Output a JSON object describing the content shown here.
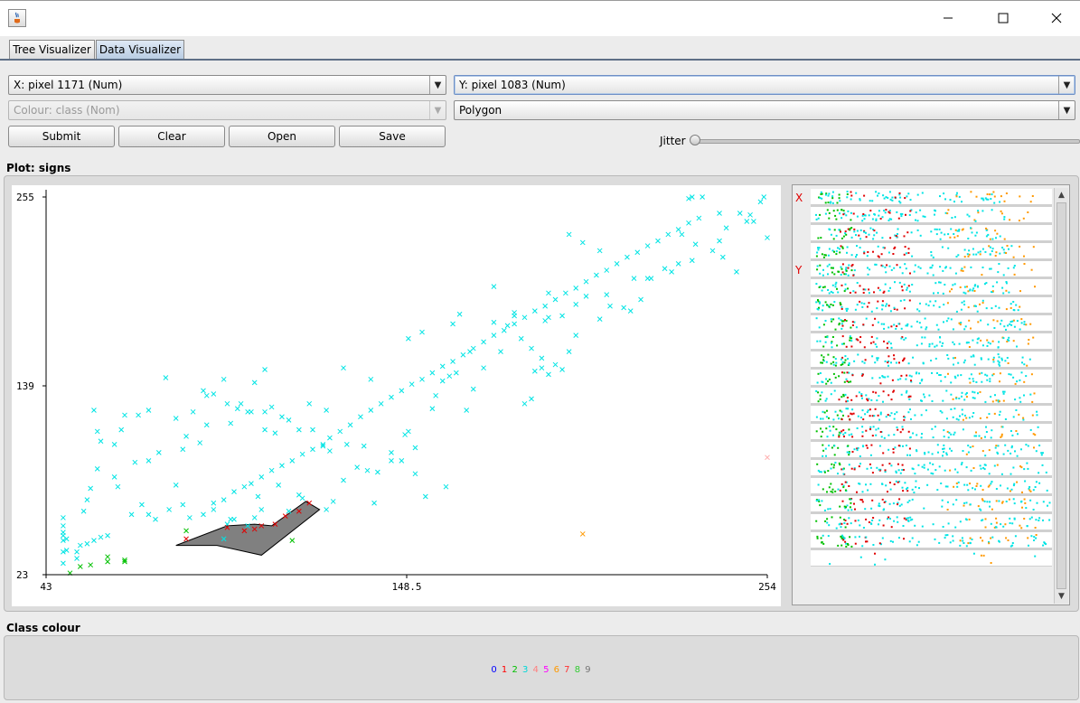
{
  "window": {
    "icon": "java-app-icon",
    "minimize_icon": "minimize-icon",
    "maximize_icon": "maximize-icon",
    "close_icon": "close-icon"
  },
  "tabs": [
    {
      "label": "Tree Visualizer",
      "active": false
    },
    {
      "label": "Data Visualizer",
      "active": true
    }
  ],
  "controls": {
    "x_axis_select": "X: pixel 1171 (Num)",
    "y_axis_select": "Y: pixel 1083 (Num)",
    "colour_select": "Colour: class (Nom)",
    "shape_select": "Polygon",
    "dropdown_icon": "triangle-down-icon",
    "submit_label": "Submit",
    "clear_label": "Clear",
    "open_label": "Open",
    "save_label": "Save",
    "jitter_label": "Jitter",
    "jitter_value": 0
  },
  "plot": {
    "title": "Plot: signs",
    "polygon_fill": "#808080"
  },
  "chart_data": {
    "type": "scatter",
    "xlim": [
      43,
      254
    ],
    "ylim": [
      23,
      255
    ],
    "x_ticks": [
      "43",
      "148.5",
      "254"
    ],
    "y_ticks": [
      "255",
      "139",
      "23"
    ],
    "marker": "x",
    "series": [
      {
        "color": "#00e4e4",
        "points": [
          [
            52,
            33
          ],
          [
            52,
            37
          ],
          [
            53,
            41
          ],
          [
            55,
            42
          ],
          [
            57,
            44
          ],
          [
            59,
            46
          ],
          [
            61,
            47
          ],
          [
            49,
            45
          ],
          [
            48,
            37
          ],
          [
            48,
            30
          ],
          [
            49,
            38
          ],
          [
            48,
            44
          ],
          [
            48,
            47
          ],
          [
            48,
            49
          ],
          [
            48,
            53
          ],
          [
            48,
            58
          ],
          [
            54,
            62
          ],
          [
            55,
            69
          ],
          [
            56,
            76
          ],
          [
            58,
            88
          ],
          [
            63,
            83
          ],
          [
            64,
            77
          ],
          [
            68,
            60
          ],
          [
            71,
            66
          ],
          [
            73,
            60
          ],
          [
            81,
            78
          ],
          [
            92,
            63
          ],
          [
            95,
            45
          ],
          [
            96,
            54
          ],
          [
            97,
            57
          ],
          [
            98,
            57
          ],
          [
            102,
            53
          ],
          [
            104,
            58
          ],
          [
            105,
            71
          ],
          [
            106,
            63
          ],
          [
            111,
            78
          ],
          [
            114,
            62
          ],
          [
            118,
            70
          ],
          [
            117,
            72
          ],
          [
            125,
            63
          ],
          [
            127,
            68
          ],
          [
            130,
            81
          ],
          [
            134,
            89
          ],
          [
            137,
            87
          ],
          [
            139,
            67
          ],
          [
            140,
            86
          ],
          [
            144,
            93
          ],
          [
            147,
            93
          ],
          [
            148,
            109
          ],
          [
            149,
            111
          ],
          [
            151,
            85
          ],
          [
            154,
            71
          ],
          [
            160,
            77
          ],
          [
            166,
            124
          ],
          [
            168,
            137
          ],
          [
            171,
            150
          ],
          [
            176,
            160
          ],
          [
            183,
            128
          ],
          [
            185,
            131
          ],
          [
            186,
            148
          ],
          [
            188,
            150
          ],
          [
            189,
            179
          ],
          [
            190,
            181
          ],
          [
            194,
            182
          ],
          [
            198,
            189
          ],
          [
            201,
            194
          ],
          [
            207,
            195
          ],
          [
            212,
            187
          ],
          [
            217,
            192
          ],
          [
            220,
            205
          ],
          [
            224,
            211
          ],
          [
            229,
            232
          ],
          [
            233,
            226
          ],
          [
            240,
            228
          ],
          [
            241,
            218
          ],
          [
            245,
            209
          ],
          [
            249,
            244
          ],
          [
            250,
            240
          ],
          [
            254,
            230
          ],
          [
            232,
            255
          ],
          [
            235,
            255
          ],
          [
            240,
            245
          ],
          [
            246,
            245
          ],
          [
            231,
            254
          ],
          [
            228,
            214
          ],
          [
            215,
            205
          ],
          [
            200,
            227
          ],
          [
            196,
            232
          ],
          [
            205,
            222
          ],
          [
            190,
            196
          ],
          [
            180,
            184
          ],
          [
            174,
            200
          ],
          [
            164,
            183
          ],
          [
            162,
            177
          ],
          [
            153,
            172
          ],
          [
            149,
            168
          ],
          [
            138,
            143
          ],
          [
            130,
            150
          ],
          [
            120,
            128
          ],
          [
            125,
            124
          ],
          [
            107,
            112
          ],
          [
            102,
            123
          ],
          [
            110,
            110
          ],
          [
            97,
            116
          ],
          [
            92,
            134
          ],
          [
            89,
            136
          ],
          [
            78,
            144
          ],
          [
            70,
            121
          ],
          [
            73,
            124
          ],
          [
            57,
            124
          ],
          [
            66,
            121
          ],
          [
            84,
            108
          ],
          [
            88,
            104
          ],
          [
            83,
            100
          ],
          [
            76,
            98
          ],
          [
            73,
            93
          ],
          [
            69,
            92
          ],
          [
            63,
            103
          ],
          [
            65,
            112
          ],
          [
            58,
            111
          ],
          [
            59,
            105
          ],
          [
            107,
            149
          ],
          [
            104,
            141
          ],
          [
            100,
            128
          ],
          [
            95,
            143
          ],
          [
            90,
            133
          ],
          [
            86,
            123
          ],
          [
            81,
            119
          ],
          [
            90,
            115
          ],
          [
            96,
            128
          ],
          [
            99,
            125
          ],
          [
            103,
            123
          ],
          [
            107,
            123
          ],
          [
            109,
            126
          ],
          [
            112,
            120
          ],
          [
            114,
            118
          ],
          [
            117,
            112
          ],
          [
            121,
            112
          ],
          [
            124,
            102
          ],
          [
            126,
            99
          ],
          [
            131,
            103
          ],
          [
            136,
            102
          ],
          [
            144,
            98
          ],
          [
            151,
            101
          ],
          [
            156,
            125
          ],
          [
            157,
            133
          ],
          [
            159,
            142
          ],
          [
            161,
            145
          ],
          [
            163,
            147
          ],
          [
            167,
            160
          ],
          [
            174,
            178
          ],
          [
            178,
            176
          ],
          [
            180,
            182
          ],
          [
            182,
            168
          ],
          [
            185,
            162
          ],
          [
            188,
            156
          ],
          [
            190,
            146
          ],
          [
            192,
            152
          ],
          [
            194,
            149
          ],
          [
            196,
            160
          ],
          [
            198,
            170
          ],
          [
            205,
            180
          ],
          [
            208,
            188
          ],
          [
            214,
            185
          ],
          [
            219,
            205
          ],
          [
            226,
            209
          ],
          [
            232,
            216
          ],
          [
            238,
            222
          ],
          [
            242,
            236
          ],
          [
            248,
            240
          ],
          [
            252,
            252
          ],
          [
            253,
            255
          ],
          [
            75,
            57
          ],
          [
            79,
            63
          ],
          [
            83,
            66
          ],
          [
            85,
            58
          ],
          [
            89,
            60
          ],
          [
            92,
            67
          ],
          [
            95,
            69
          ],
          [
            98,
            74
          ],
          [
            101,
            77
          ],
          [
            103,
            79
          ],
          [
            106,
            83
          ],
          [
            109,
            87
          ],
          [
            112,
            90
          ],
          [
            115,
            93
          ],
          [
            118,
            97
          ],
          [
            121,
            100
          ],
          [
            124,
            103
          ],
          [
            126,
            107
          ],
          [
            129,
            111
          ],
          [
            132,
            115
          ],
          [
            135,
            120
          ],
          [
            138,
            124
          ],
          [
            141,
            128
          ],
          [
            144,
            132
          ],
          [
            147,
            136
          ],
          [
            150,
            140
          ],
          [
            153,
            143
          ],
          [
            156,
            147
          ],
          [
            159,
            151
          ],
          [
            162,
            154
          ],
          [
            165,
            158
          ],
          [
            168,
            162
          ],
          [
            171,
            166
          ],
          [
            174,
            170
          ],
          [
            177,
            173
          ],
          [
            180,
            177
          ],
          [
            183,
            181
          ],
          [
            186,
            185
          ],
          [
            189,
            188
          ],
          [
            192,
            192
          ],
          [
            195,
            196
          ],
          [
            198,
            199
          ],
          [
            201,
            203
          ],
          [
            204,
            207
          ],
          [
            207,
            210
          ],
          [
            210,
            214
          ],
          [
            213,
            218
          ],
          [
            216,
            221
          ],
          [
            219,
            225
          ],
          [
            222,
            228
          ],
          [
            225,
            232
          ],
          [
            228,
            235
          ],
          [
            231,
            239
          ],
          [
            234,
            242
          ]
        ]
      },
      {
        "color": "#00c000",
        "points": [
          [
            50,
            24
          ],
          [
            53,
            28
          ],
          [
            56,
            29
          ],
          [
            61,
            31
          ],
          [
            61,
            34
          ],
          [
            66,
            31
          ],
          [
            66,
            32
          ],
          [
            84,
            50
          ],
          [
            115,
            44
          ]
        ]
      },
      {
        "color": "#e00000",
        "points": [
          [
            84,
            45
          ],
          [
            96,
            52
          ],
          [
            101,
            50
          ],
          [
            104,
            51
          ],
          [
            106,
            53
          ],
          [
            110,
            54
          ],
          [
            113,
            59
          ],
          [
            117,
            62
          ],
          [
            120,
            67
          ]
        ]
      },
      {
        "color": "#ff9900",
        "points": [
          [
            200,
            48
          ]
        ]
      },
      {
        "color": "#ffb0b0",
        "points": [
          [
            254,
            95
          ]
        ]
      }
    ],
    "polygon": [
      [
        81,
        41
      ],
      [
        96,
        53
      ],
      [
        104,
        54
      ],
      [
        109,
        53
      ],
      [
        119,
        68
      ],
      [
        123,
        63
      ],
      [
        106,
        35
      ],
      [
        93,
        41
      ],
      [
        81,
        41
      ]
    ]
  },
  "attribute_panel": {
    "x_marker": "X",
    "y_marker": "Y",
    "up_icon": "scroll-up-icon",
    "down_icon": "scroll-down-icon"
  },
  "class_colour": {
    "title": "Class colour",
    "classes": [
      {
        "label": "0",
        "color": "#0000ff"
      },
      {
        "label": "1",
        "color": "#ff0000"
      },
      {
        "label": "2",
        "color": "#00c000"
      },
      {
        "label": "3",
        "color": "#00d8d8"
      },
      {
        "label": "4",
        "color": "#ff7f7f"
      },
      {
        "label": "5",
        "color": "#ff00ff"
      },
      {
        "label": "6",
        "color": "#ff9900"
      },
      {
        "label": "7",
        "color": "#ff3333"
      },
      {
        "label": "8",
        "color": "#33cc33"
      },
      {
        "label": "9",
        "color": "#777777"
      }
    ]
  }
}
